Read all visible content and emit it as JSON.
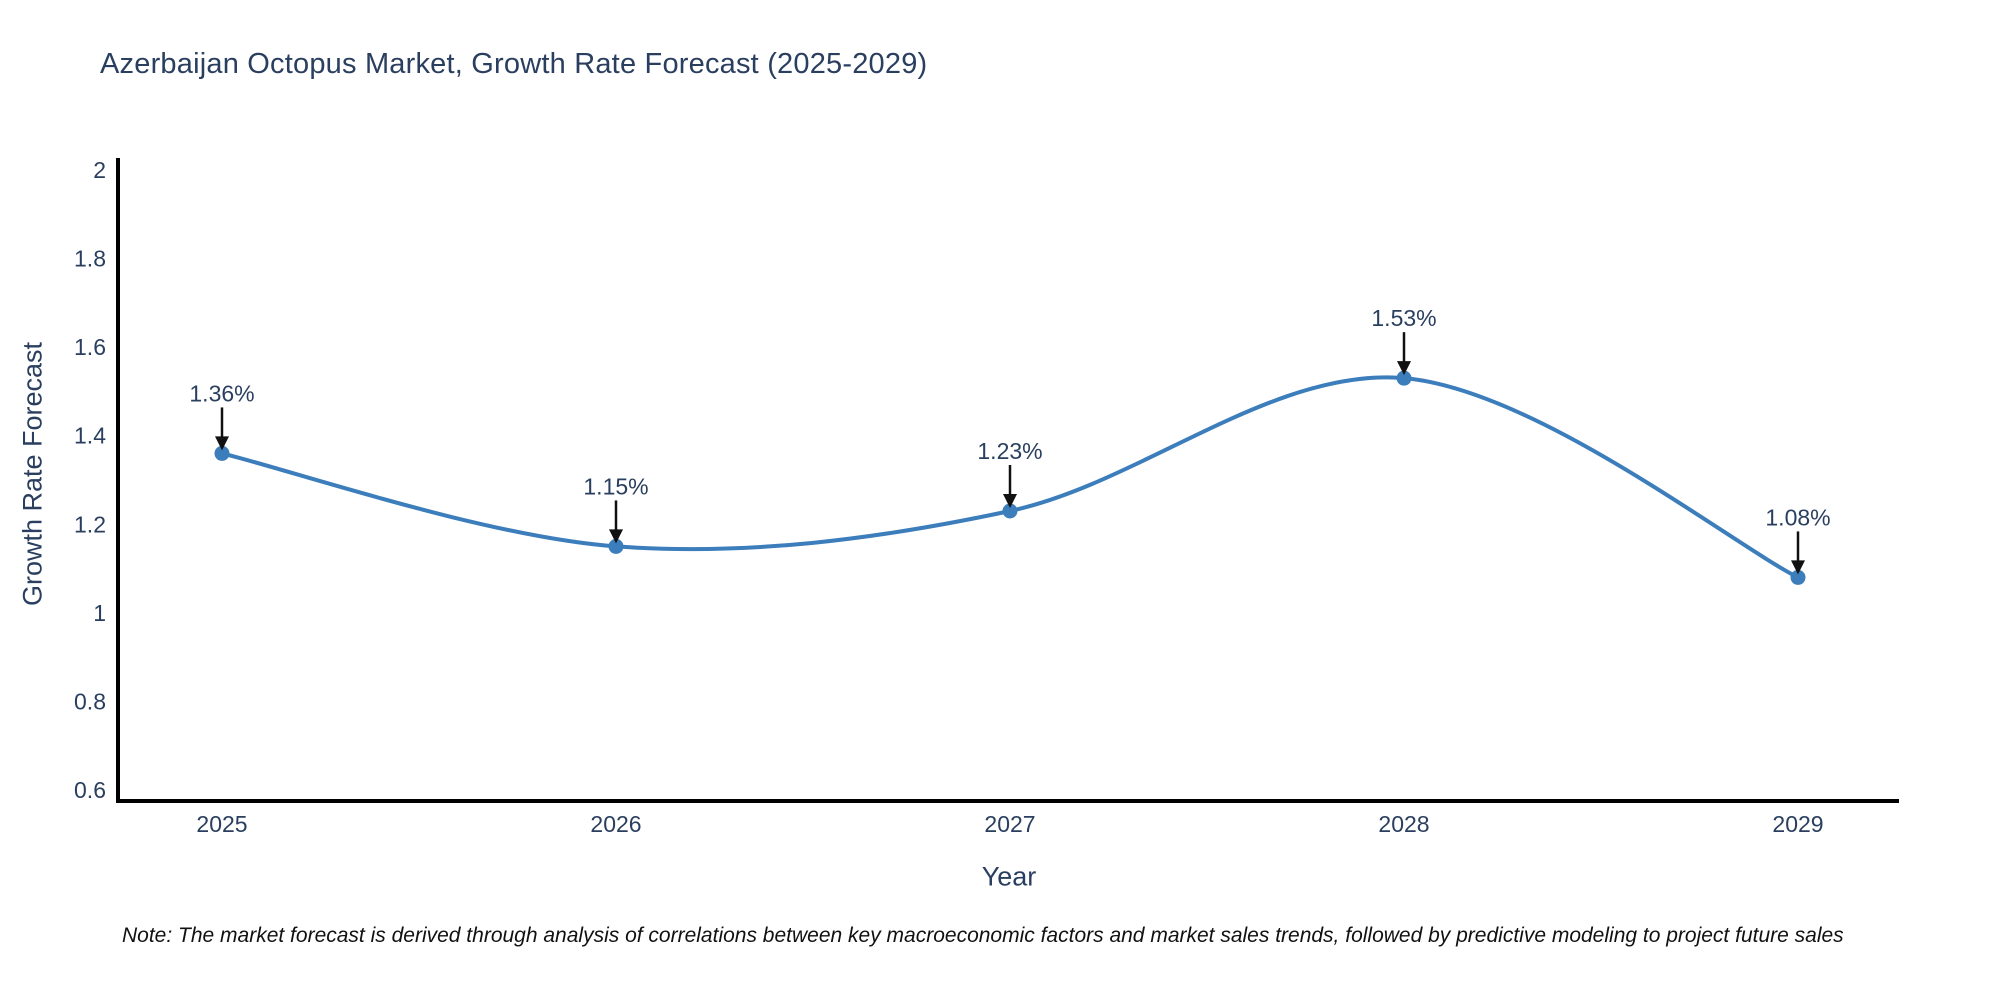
{
  "title": "Azerbaijan Octopus Market, Growth Rate Forecast (2025-2029)",
  "note": "Note: The market forecast is derived through analysis of correlations between key macroeconomic factors and market sales trends, followed by predictive modeling to project future sales",
  "chart_data": {
    "type": "line",
    "title": "Azerbaijan Octopus Market, Growth Rate Forecast (2025-2029)",
    "xlabel": "Year",
    "ylabel": "Growth Rate Forecast",
    "categories": [
      "2025",
      "2026",
      "2027",
      "2028",
      "2029"
    ],
    "x": [
      2025,
      2026,
      2027,
      2028,
      2029
    ],
    "series": [
      {
        "name": "Growth Rate Forecast",
        "values": [
          1.36,
          1.15,
          1.23,
          1.53,
          1.08
        ]
      }
    ],
    "data_labels": [
      "1.36%",
      "1.15%",
      "1.23%",
      "1.53%",
      "1.08%"
    ],
    "ylim": [
      0.6,
      2
    ],
    "yticks": [
      0.6,
      0.8,
      1,
      1.2,
      1.4,
      1.6,
      1.8,
      2
    ],
    "ytick_labels": [
      "0.6",
      "0.8",
      "1",
      "1.2",
      "1.4",
      "1.6",
      "1.8",
      "2"
    ],
    "grid": false,
    "legend": "none",
    "line_shape": "spline",
    "marker": "circle",
    "annotation_arrows": true,
    "colors": {
      "line": "#3c7dbb",
      "marker": "#3c7dbb",
      "axis_line": "#000000",
      "text": "#2a3f5f",
      "arrow": "#111111"
    }
  }
}
